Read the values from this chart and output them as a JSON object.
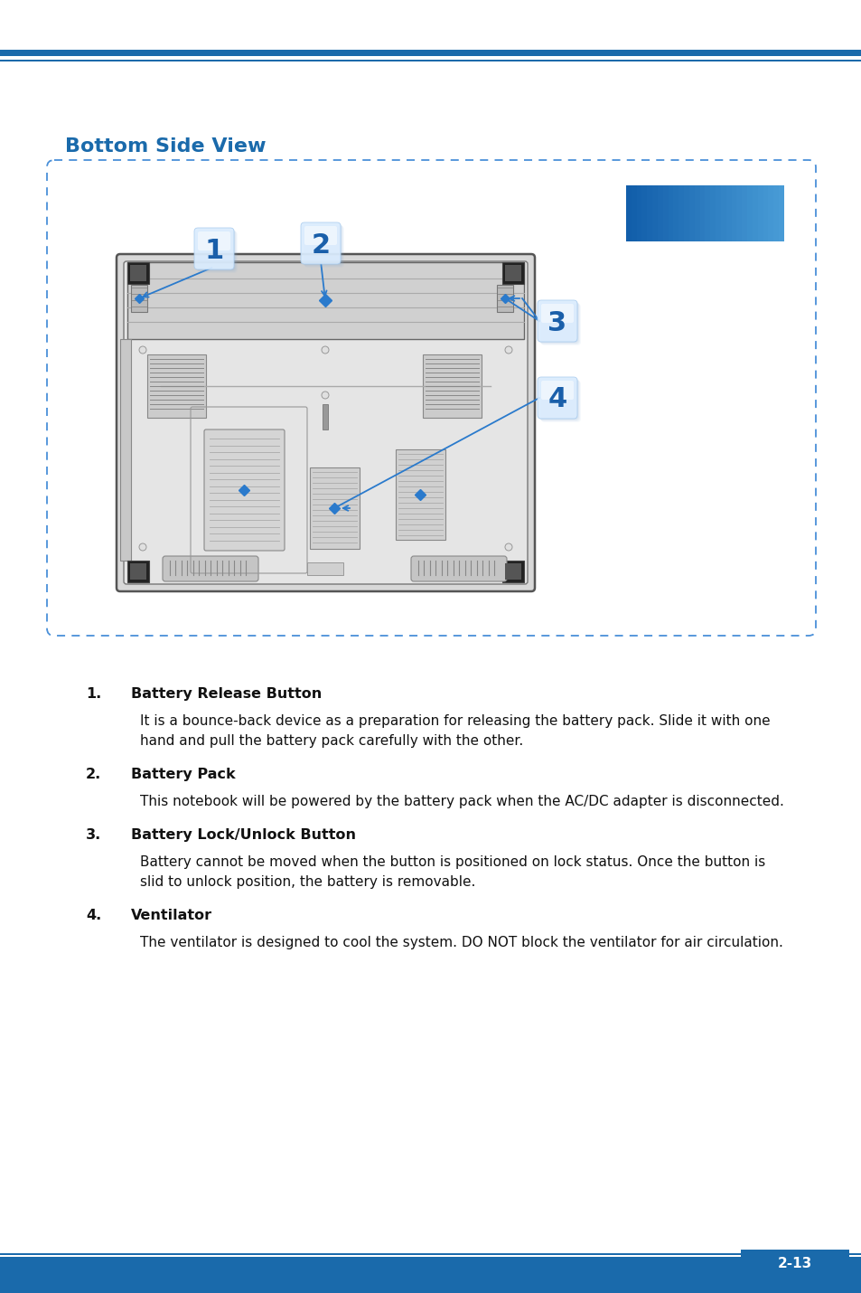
{
  "page_bg": "#ffffff",
  "header_thick_color": "#1a6aab",
  "header_thin_color": "#1a6aab",
  "footer_bg_color": "#1a6aab",
  "page_number": "2-13",
  "title": "Bottom Side View",
  "title_color": "#1a6aab",
  "items": [
    {
      "number": "1.",
      "title": "Battery Release Button",
      "body_lines": [
        "It is a bounce-back device as a preparation for releasing the battery pack. Slide it with one",
        "hand and pull the battery pack carefully with the other."
      ]
    },
    {
      "number": "2.",
      "title": "Battery Pack",
      "body_lines": [
        "This notebook will be powered by the battery pack when the AC/DC adapter is disconnected."
      ]
    },
    {
      "number": "3.",
      "title": "Battery Lock/Unlock Button",
      "body_lines": [
        "Battery cannot be moved when the button is positioned on lock status. Once the button is",
        "slid to unlock position, the battery is removable."
      ]
    },
    {
      "number": "4.",
      "title": "Ventilator",
      "body_lines": [
        "The ventilator is designed to cool the system. DO NOT block the ventilator for air circulation."
      ]
    }
  ]
}
